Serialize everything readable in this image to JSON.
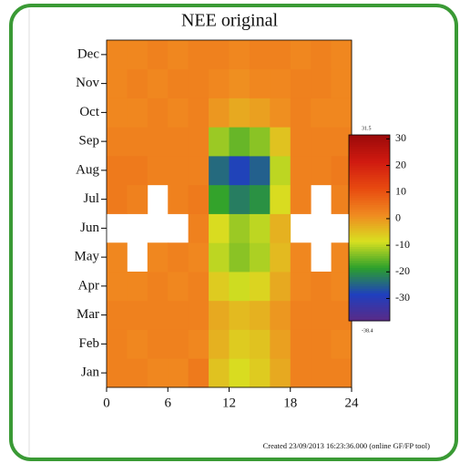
{
  "chart_data": {
    "type": "heatmap",
    "title": "NEE original",
    "footer": "Created 23/09/2013 16:23:36.000 (online GF/FP tool)",
    "categories": [
      "Jan",
      "Feb",
      "Mar",
      "Apr",
      "May",
      "Jun",
      "Jul",
      "Aug",
      "Sep",
      "Oct",
      "Nov",
      "Dec"
    ],
    "xlim": [
      0,
      24
    ],
    "xticks": [
      0,
      6,
      12,
      18,
      24
    ],
    "values": [
      [
        3,
        3,
        2,
        2,
        4,
        -5,
        -8,
        -6,
        -2,
        3,
        3,
        3
      ],
      [
        3,
        2,
        3,
        3,
        2,
        -3,
        -6,
        -5,
        -1,
        3,
        3,
        2
      ],
      [
        3,
        3,
        3,
        3,
        3,
        -2,
        -4,
        -3,
        0,
        3,
        3,
        3
      ],
      [
        2,
        2,
        3,
        2,
        3,
        -6,
        -9,
        -7,
        -2,
        2,
        3,
        2
      ],
      [
        2,
        null,
        2,
        3,
        2,
        -10,
        -13,
        -11,
        -4,
        2,
        null,
        2
      ],
      [
        null,
        null,
        null,
        null,
        3,
        -8,
        -12,
        -10,
        -3,
        null,
        null,
        null
      ],
      [
        4,
        3,
        null,
        3,
        4,
        -18,
        -22,
        -20,
        -8,
        3,
        null,
        3
      ],
      [
        4,
        4,
        3,
        3,
        3,
        -24,
        -28,
        -25,
        -10,
        3,
        3,
        4
      ],
      [
        3,
        3,
        3,
        3,
        3,
        -12,
        -15,
        -13,
        -5,
        3,
        3,
        3
      ],
      [
        2,
        2,
        3,
        2,
        3,
        0,
        -2,
        -1,
        1,
        3,
        2,
        2
      ],
      [
        2,
        3,
        2,
        3,
        3,
        2,
        1,
        2,
        2,
        3,
        3,
        2
      ],
      [
        2,
        2,
        3,
        2,
        3,
        3,
        2,
        3,
        3,
        2,
        3,
        2
      ]
    ],
    "zlim": [
      -38.4,
      31.5
    ],
    "zticks": [
      -30,
      -20,
      -10,
      0,
      10,
      20,
      30
    ],
    "colorscale": [
      "#5b2a86",
      "#1f3fbf",
      "#2ca02c",
      "#d8e020",
      "#f08a20",
      "#e84a10",
      "#d01a10",
      "#9c0a0a"
    ]
  }
}
